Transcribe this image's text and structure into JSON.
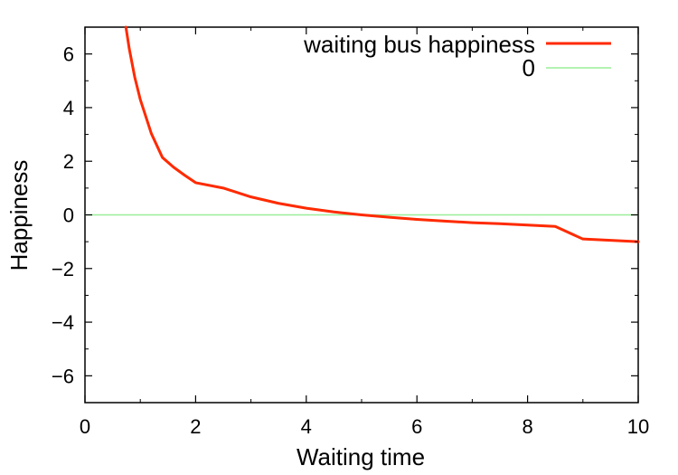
{
  "chart_data": {
    "type": "line",
    "xlabel": "Waiting time",
    "ylabel": "Happiness",
    "xlim": [
      0,
      10
    ],
    "ylim": [
      -7,
      7
    ],
    "x_ticks": [
      0,
      2,
      4,
      6,
      8,
      10
    ],
    "y_ticks": [
      -6,
      -4,
      -2,
      0,
      2,
      4,
      6
    ],
    "x_tick_labels": [
      "0",
      "2",
      "4",
      "6",
      "8",
      "10"
    ],
    "y_tick_labels": [
      "−6",
      "−4",
      "−2",
      "0",
      "2",
      "4",
      "6"
    ],
    "grid": false,
    "legend_position": "top-right",
    "series": [
      {
        "name": "waiting bus happiness",
        "color": "#ff2a00",
        "x": [
          0.74,
          0.8,
          0.9,
          1.0,
          1.2,
          1.4,
          1.6,
          1.8,
          2.0,
          2.5,
          3.0,
          3.5,
          4.0,
          4.5,
          5.0,
          5.5,
          6.0,
          6.5,
          7.0,
          7.5,
          8.0,
          8.5,
          9.0,
          9.5,
          10.0
        ],
        "y": [
          7.0,
          6.2,
          5.13,
          4.3,
          3.03,
          2.14,
          1.78,
          1.48,
          1.2,
          1.0,
          0.67,
          0.43,
          0.25,
          0.11,
          0.0,
          -0.09,
          -0.17,
          -0.23,
          -0.29,
          -0.33,
          -0.38,
          -0.43,
          -0.9,
          -0.95,
          -1.0
        ]
      },
      {
        "name": "0",
        "color": "#99ee99",
        "x": [
          0,
          10
        ],
        "y": [
          0,
          0
        ]
      }
    ]
  }
}
